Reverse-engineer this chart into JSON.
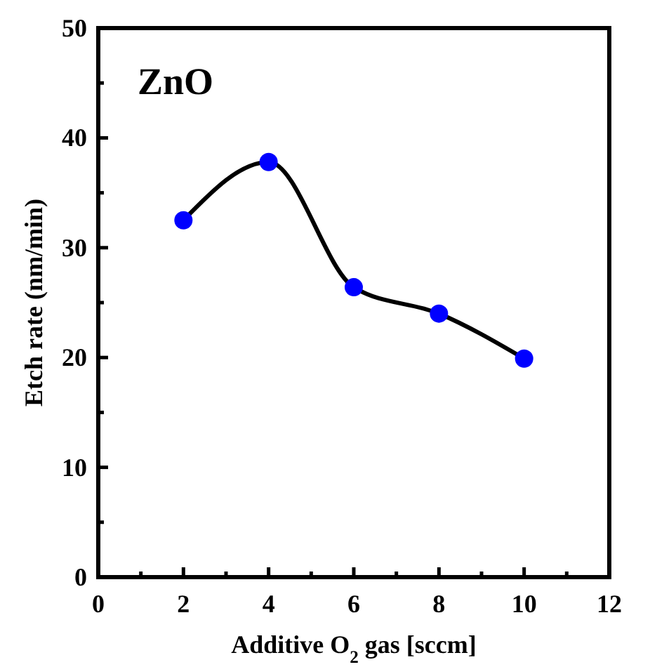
{
  "chart_data": {
    "type": "line",
    "xlabel": "Additive O$_{2}$ gas [sccm]",
    "ylabel": "Etch rate (nm/min)",
    "annotations": [
      "ZnO"
    ],
    "x": [
      2,
      4,
      6,
      8,
      10
    ],
    "series": [
      {
        "color": "#0000ff",
        "values": [
          32.5,
          37.8,
          26.4,
          24.0,
          19.9
        ]
      }
    ],
    "xlim": [
      0,
      12
    ],
    "xticks": [
      0,
      {
        "value": 1,
        "label": null
      },
      2,
      {
        "value": 3,
        "label": null
      },
      4,
      {
        "value": 5,
        "label": null
      },
      6,
      {
        "value": 7,
        "label": null
      },
      8,
      {
        "value": 9,
        "label": null
      },
      10,
      {
        "value": 11,
        "label": null
      },
      12
    ],
    "ylim": [
      0,
      50
    ],
    "yticks": [
      0,
      {
        "value": 5,
        "label": null
      },
      10,
      {
        "value": 15,
        "label": null
      },
      20,
      {
        "value": 25,
        "label": null
      },
      30,
      {
        "value": 35,
        "label": null
      },
      40,
      {
        "value": 45,
        "label": null
      },
      50
    ],
    "marker": "circle",
    "grid": false
  }
}
